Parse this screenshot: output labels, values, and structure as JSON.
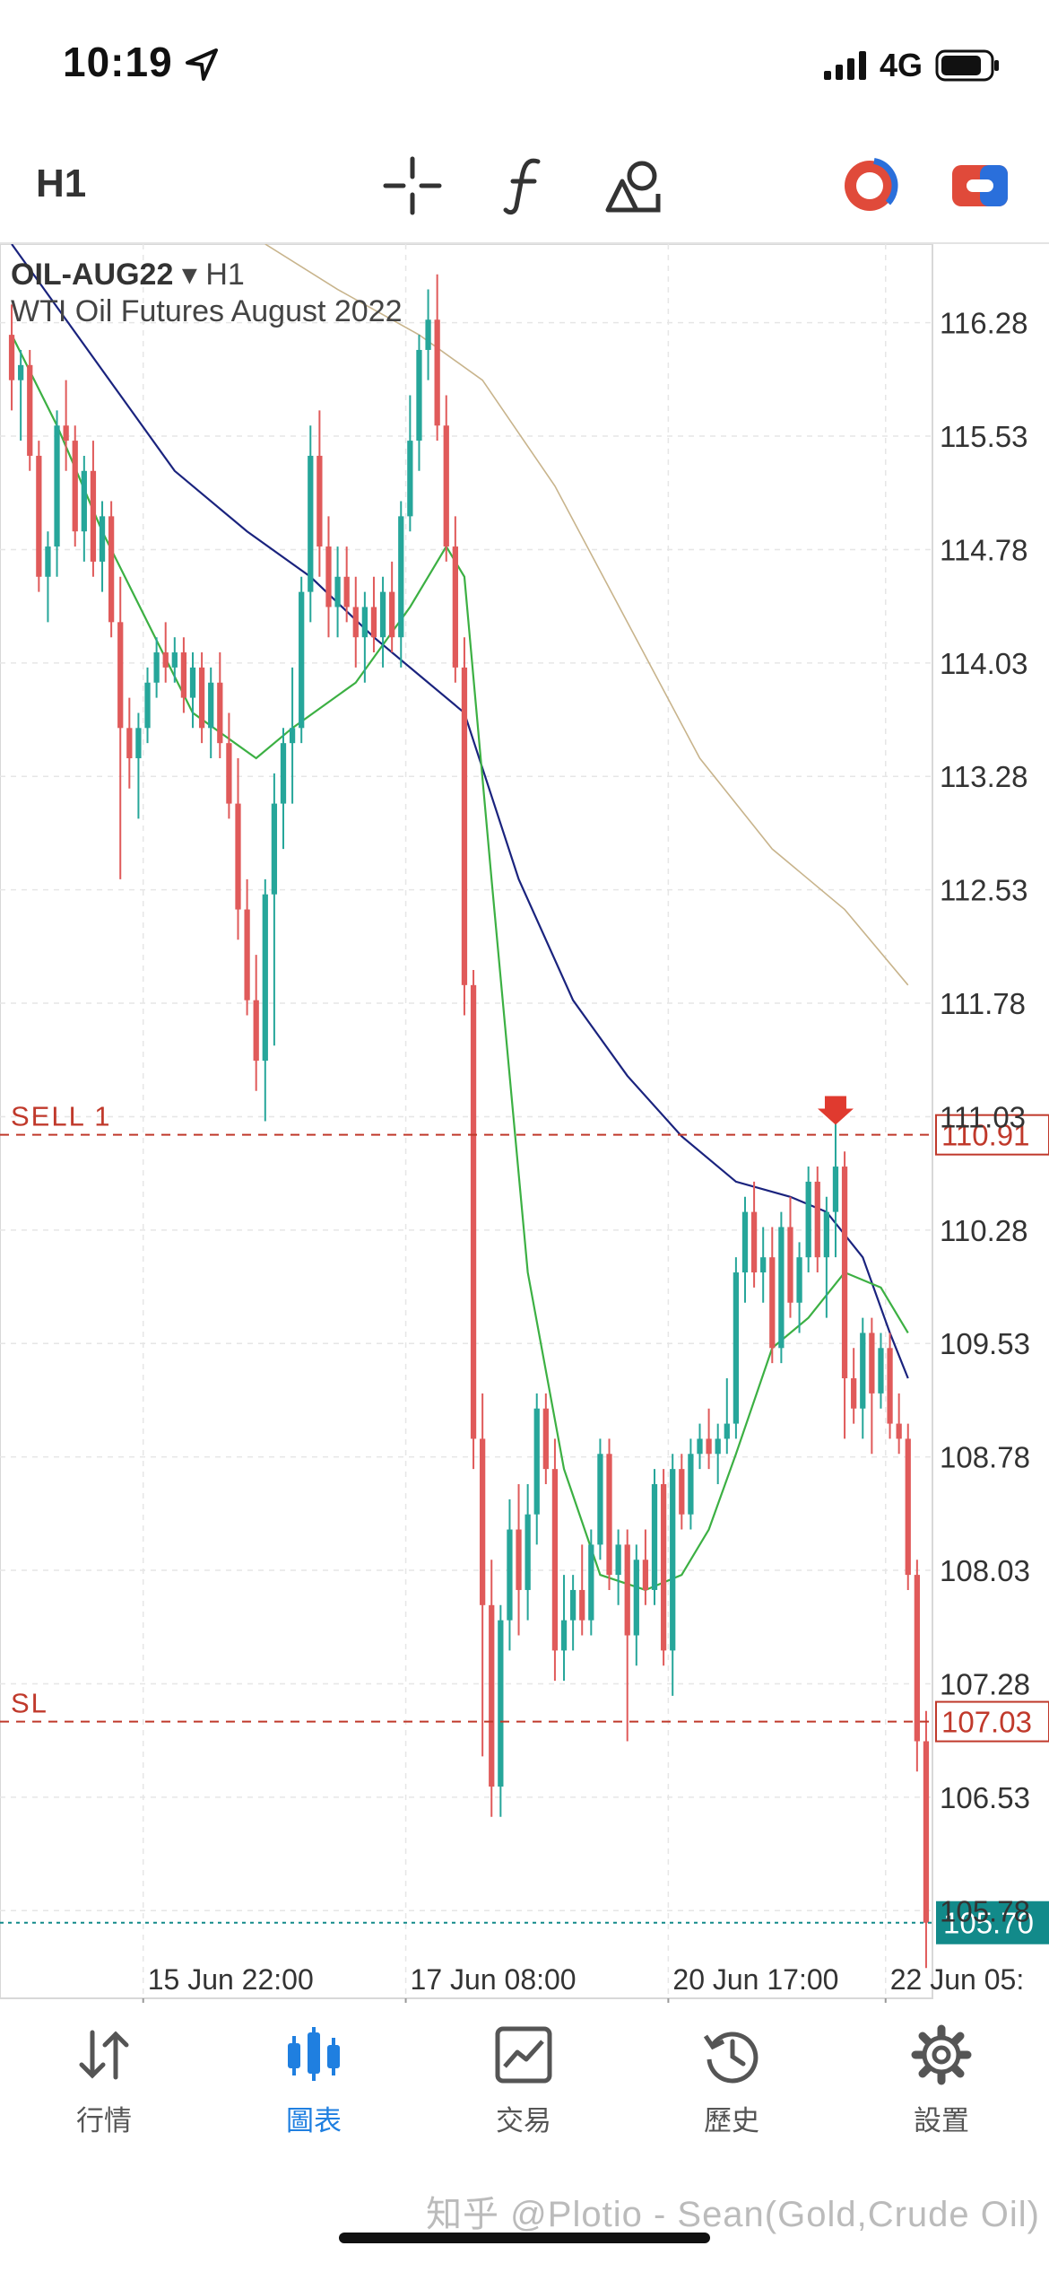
{
  "status": {
    "time": "10:19",
    "network": "4G"
  },
  "toolbar": {
    "timeframe": "H1",
    "icons": [
      "crosshair-icon",
      "function-icon",
      "objects-icon",
      "indicator-toggle-icon",
      "trade-toggle-icon"
    ]
  },
  "chart": {
    "symbol": "OIL-AUG22",
    "timeframe_label": "H1",
    "description": "WTI Oil Futures August 2022",
    "price_ticks": [
      "116.28",
      "115.53",
      "114.78",
      "114.03",
      "113.28",
      "112.53",
      "111.78",
      "111.03",
      "110.28",
      "109.53",
      "108.78",
      "108.03",
      "107.28",
      "106.53",
      "105.78"
    ],
    "time_ticks": [
      "15 Jun 22:00",
      "17 Jun 08:00",
      "20 Jun 17:00",
      "22 Jun 05:"
    ],
    "levels": [
      {
        "label": "SELL 1",
        "price": "110.91",
        "color": "#c0392b"
      },
      {
        "label": "SL",
        "price": "107.03",
        "color": "#c0392b"
      },
      {
        "label": "",
        "price": "105.70",
        "color": "#128a8a"
      }
    ],
    "colors": {
      "bull": "#26a69a",
      "bear": "#e05a5a",
      "ma_fast": "#3cb043",
      "ma_mid": "#1a237e",
      "ma_slow": "#c8b48c"
    }
  },
  "chart_data": {
    "type": "candlestick",
    "ylim": [
      105.2,
      116.8
    ],
    "candles": [
      [
        116.2,
        116.4,
        115.7,
        115.9
      ],
      [
        115.9,
        116.1,
        115.5,
        116.0
      ],
      [
        116.0,
        116.1,
        115.3,
        115.4
      ],
      [
        115.4,
        115.5,
        114.5,
        114.6
      ],
      [
        114.6,
        114.9,
        114.3,
        114.8
      ],
      [
        114.8,
        115.7,
        114.6,
        115.6
      ],
      [
        115.6,
        115.9,
        115.3,
        115.5
      ],
      [
        115.5,
        115.6,
        114.8,
        114.9
      ],
      [
        114.9,
        115.4,
        114.7,
        115.3
      ],
      [
        115.3,
        115.5,
        114.6,
        114.7
      ],
      [
        114.7,
        115.1,
        114.5,
        115.0
      ],
      [
        115.0,
        115.1,
        114.2,
        114.3
      ],
      [
        114.3,
        114.6,
        112.6,
        113.6
      ],
      [
        113.6,
        113.8,
        113.2,
        113.4
      ],
      [
        113.4,
        113.7,
        113.0,
        113.6
      ],
      [
        113.6,
        114.0,
        113.5,
        113.9
      ],
      [
        113.9,
        114.2,
        113.8,
        114.1
      ],
      [
        114.1,
        114.3,
        113.9,
        114.0
      ],
      [
        114.0,
        114.2,
        113.9,
        114.1
      ],
      [
        114.1,
        114.2,
        113.7,
        113.8
      ],
      [
        113.8,
        114.1,
        113.6,
        114.0
      ],
      [
        114.0,
        114.1,
        113.5,
        113.6
      ],
      [
        113.6,
        114.0,
        113.4,
        113.9
      ],
      [
        113.9,
        114.1,
        113.4,
        113.5
      ],
      [
        113.5,
        113.7,
        113.0,
        113.1
      ],
      [
        113.1,
        113.4,
        112.2,
        112.4
      ],
      [
        112.4,
        112.6,
        111.7,
        111.8
      ],
      [
        111.8,
        112.1,
        111.2,
        111.4
      ],
      [
        111.4,
        112.6,
        111.0,
        112.5
      ],
      [
        112.5,
        113.3,
        111.5,
        113.1
      ],
      [
        113.1,
        113.6,
        112.8,
        113.5
      ],
      [
        113.5,
        114.0,
        113.1,
        113.6
      ],
      [
        113.6,
        114.6,
        113.5,
        114.5
      ],
      [
        114.5,
        115.6,
        114.3,
        115.4
      ],
      [
        115.4,
        115.7,
        114.6,
        114.8
      ],
      [
        114.8,
        115.0,
        114.2,
        114.4
      ],
      [
        114.4,
        114.8,
        114.2,
        114.6
      ],
      [
        114.6,
        114.8,
        114.3,
        114.4
      ],
      [
        114.4,
        114.6,
        114.0,
        114.2
      ],
      [
        114.2,
        114.5,
        113.9,
        114.4
      ],
      [
        114.4,
        114.6,
        114.1,
        114.2
      ],
      [
        114.2,
        114.6,
        114.0,
        114.5
      ],
      [
        114.5,
        114.7,
        114.1,
        114.2
      ],
      [
        114.2,
        115.1,
        114.0,
        115.0
      ],
      [
        115.0,
        115.8,
        114.9,
        115.5
      ],
      [
        115.5,
        116.2,
        115.3,
        116.1
      ],
      [
        116.1,
        116.5,
        115.9,
        116.3
      ],
      [
        116.3,
        116.6,
        115.5,
        115.6
      ],
      [
        115.6,
        115.8,
        114.7,
        114.8
      ],
      [
        114.8,
        115.0,
        113.9,
        114.0
      ],
      [
        114.0,
        114.2,
        111.7,
        111.9
      ],
      [
        111.9,
        112.0,
        108.7,
        108.9
      ],
      [
        108.9,
        109.2,
        106.8,
        107.8
      ],
      [
        107.8,
        108.1,
        106.4,
        106.6
      ],
      [
        106.6,
        107.8,
        106.4,
        107.7
      ],
      [
        107.7,
        108.5,
        107.5,
        108.3
      ],
      [
        108.3,
        108.6,
        107.6,
        107.9
      ],
      [
        107.9,
        108.6,
        107.7,
        108.4
      ],
      [
        108.4,
        109.2,
        108.2,
        109.1
      ],
      [
        109.1,
        109.2,
        108.6,
        108.7
      ],
      [
        108.7,
        108.9,
        107.3,
        107.5
      ],
      [
        107.5,
        108.0,
        107.3,
        107.7
      ],
      [
        107.7,
        108.0,
        107.5,
        107.9
      ],
      [
        107.9,
        108.2,
        107.6,
        107.7
      ],
      [
        107.7,
        108.3,
        107.6,
        108.2
      ],
      [
        108.2,
        108.9,
        108.1,
        108.8
      ],
      [
        108.8,
        108.9,
        107.9,
        108.0
      ],
      [
        108.0,
        108.3,
        107.8,
        108.2
      ],
      [
        108.2,
        108.3,
        106.9,
        107.6
      ],
      [
        107.6,
        108.2,
        107.4,
        108.1
      ],
      [
        108.1,
        108.3,
        107.8,
        107.9
      ],
      [
        107.9,
        108.7,
        107.8,
        108.6
      ],
      [
        108.6,
        108.7,
        107.4,
        107.5
      ],
      [
        107.5,
        108.8,
        107.2,
        108.7
      ],
      [
        108.7,
        108.8,
        108.3,
        108.4
      ],
      [
        108.4,
        108.9,
        108.3,
        108.8
      ],
      [
        108.8,
        109.0,
        108.7,
        108.9
      ],
      [
        108.9,
        109.1,
        108.7,
        108.8
      ],
      [
        108.8,
        109.0,
        108.6,
        108.9
      ],
      [
        108.9,
        109.3,
        108.8,
        109.0
      ],
      [
        109.0,
        110.1,
        108.9,
        110.0
      ],
      [
        110.0,
        110.5,
        109.8,
        110.4
      ],
      [
        110.4,
        110.6,
        109.9,
        110.0
      ],
      [
        110.0,
        110.3,
        109.8,
        110.1
      ],
      [
        110.1,
        110.3,
        109.4,
        109.5
      ],
      [
        109.5,
        110.4,
        109.4,
        110.3
      ],
      [
        110.3,
        110.5,
        109.7,
        109.8
      ],
      [
        109.8,
        110.2,
        109.6,
        110.1
      ],
      [
        110.1,
        110.7,
        110.0,
        110.6
      ],
      [
        110.6,
        110.7,
        110.0,
        110.1
      ],
      [
        110.1,
        110.5,
        109.7,
        110.4
      ],
      [
        110.4,
        111.0,
        110.1,
        110.7
      ],
      [
        110.7,
        110.8,
        108.9,
        109.3
      ],
      [
        109.3,
        109.5,
        109.0,
        109.1
      ],
      [
        109.1,
        109.7,
        108.9,
        109.6
      ],
      [
        109.6,
        109.7,
        108.8,
        109.2
      ],
      [
        109.2,
        109.6,
        109.1,
        109.5
      ],
      [
        109.5,
        109.6,
        108.9,
        109.0
      ],
      [
        109.0,
        109.2,
        108.8,
        108.9
      ],
      [
        108.9,
        109.0,
        107.9,
        108.0
      ],
      [
        108.0,
        108.1,
        106.7,
        106.9
      ],
      [
        106.9,
        107.1,
        105.4,
        105.7
      ]
    ],
    "ma_fast": [
      [
        0,
        116.2
      ],
      [
        5,
        115.6
      ],
      [
        10,
        114.9
      ],
      [
        15,
        114.3
      ],
      [
        20,
        113.7
      ],
      [
        27,
        113.4
      ],
      [
        31,
        113.6
      ],
      [
        38,
        113.9
      ],
      [
        44,
        114.4
      ],
      [
        48,
        114.8
      ],
      [
        50,
        114.6
      ],
      [
        53,
        112.6
      ],
      [
        57,
        110.0
      ],
      [
        61,
        108.7
      ],
      [
        65,
        108.0
      ],
      [
        70,
        107.9
      ],
      [
        74,
        108.0
      ],
      [
        77,
        108.3
      ],
      [
        80,
        108.8
      ],
      [
        84,
        109.5
      ],
      [
        88,
        109.7
      ],
      [
        92,
        110.0
      ],
      [
        96,
        109.9
      ],
      [
        99,
        109.6
      ]
    ],
    "ma_mid": [
      [
        0,
        116.8
      ],
      [
        6,
        116.3
      ],
      [
        12,
        115.8
      ],
      [
        18,
        115.3
      ],
      [
        26,
        114.9
      ],
      [
        33,
        114.6
      ],
      [
        40,
        114.2
      ],
      [
        46,
        113.9
      ],
      [
        50,
        113.7
      ],
      [
        56,
        112.6
      ],
      [
        62,
        111.8
      ],
      [
        68,
        111.3
      ],
      [
        74,
        110.9
      ],
      [
        80,
        110.6
      ],
      [
        86,
        110.5
      ],
      [
        90,
        110.4
      ],
      [
        94,
        110.1
      ],
      [
        97,
        109.6
      ],
      [
        99,
        109.3
      ]
    ],
    "ma_slow": [
      [
        28,
        116.8
      ],
      [
        36,
        116.5
      ],
      [
        45,
        116.2
      ],
      [
        52,
        115.9
      ],
      [
        60,
        115.2
      ],
      [
        68,
        114.3
      ],
      [
        76,
        113.4
      ],
      [
        84,
        112.8
      ],
      [
        92,
        112.4
      ],
      [
        99,
        111.9
      ]
    ]
  },
  "bottom_nav": [
    {
      "label": "行情",
      "icon": "quotes-icon",
      "active": false
    },
    {
      "label": "圖表",
      "icon": "chart-icon",
      "active": true
    },
    {
      "label": "交易",
      "icon": "trade-icon",
      "active": false
    },
    {
      "label": "歷史",
      "icon": "history-icon",
      "active": false
    },
    {
      "label": "設置",
      "icon": "settings-icon",
      "active": false
    }
  ],
  "watermark": "知乎 @Plotio - Sean(Gold,Crude Oil)"
}
